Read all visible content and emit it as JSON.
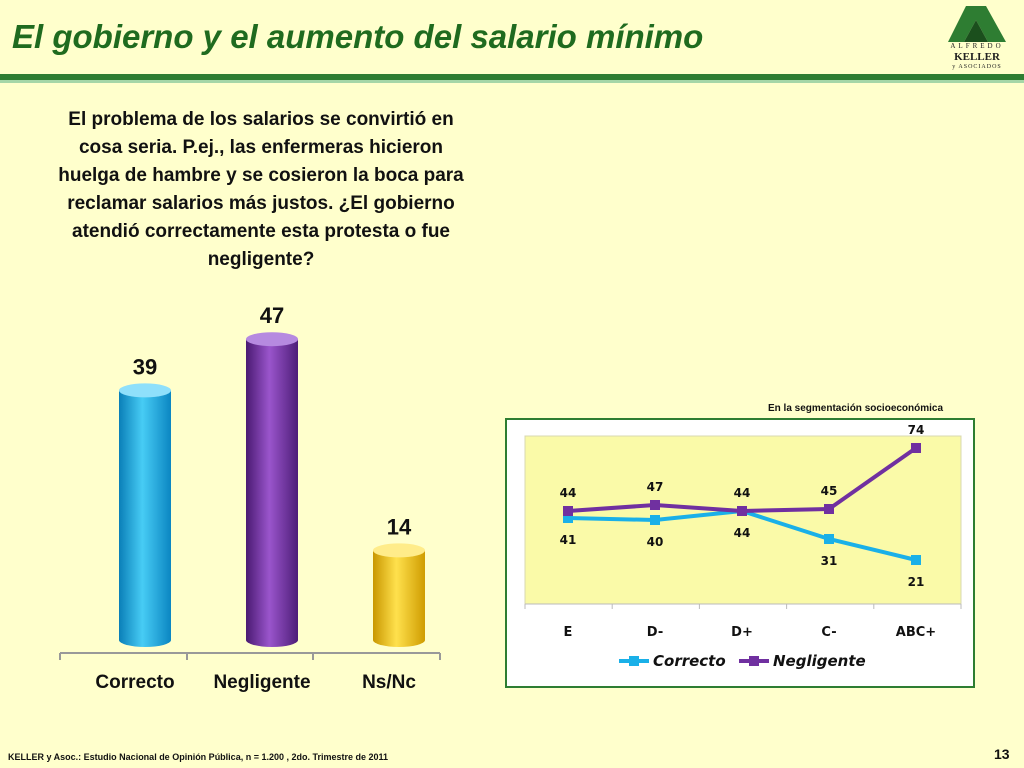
{
  "header": {
    "title": "El gobierno y el aumento del salario mínimo"
  },
  "logo": {
    "line1": "ALFREDO",
    "line2": "KELLER",
    "line3": "y ASOCIADOS"
  },
  "question": "El problema de los salarios se convirtió en cosa seria. P.ej., las enfermeras hicieron huelga de hambre y se cosieron la boca para reclamar salarios más justos. ¿El gobierno atendió correctamente esta protesta o fue negligente?",
  "segment_label": "En la segmentación socioeconómica",
  "footer": {
    "source": "KELLER y Asoc.: Estudio Nacional de Opinión Pública, n = 1.200 , 2do. Trimestre de 2011",
    "page": "13"
  },
  "colors": {
    "correcto": "#1ab0e8",
    "negligente": "#7030a0",
    "nsnc": "#f2c200",
    "title": "#1f6b1f",
    "plot_bg": "#fafaa8"
  },
  "chart_data": [
    {
      "type": "bar",
      "categories": [
        "Correcto",
        "Negligente",
        "Ns/Nc"
      ],
      "values": [
        39,
        47,
        14
      ],
      "ylim": [
        0,
        50
      ]
    },
    {
      "type": "line",
      "categories": [
        "E",
        "D-",
        "D+",
        "C-",
        "ABC+"
      ],
      "series": [
        {
          "name": "Correcto",
          "values": [
            41,
            40,
            44,
            31,
            21
          ]
        },
        {
          "name": "Negligente",
          "values": [
            44,
            47,
            44,
            45,
            74
          ]
        }
      ],
      "legend": "bottom"
    }
  ]
}
